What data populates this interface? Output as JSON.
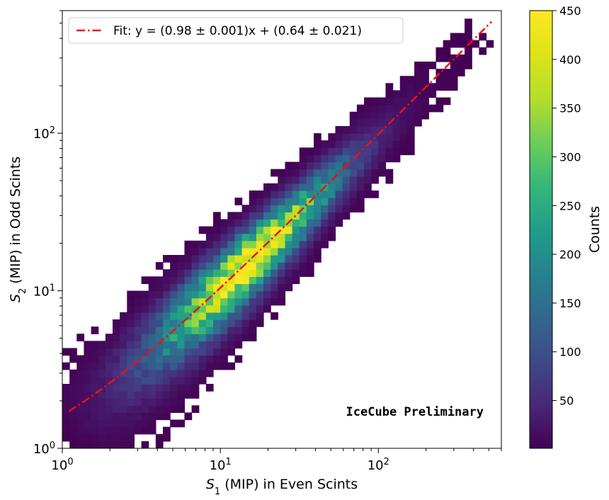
{
  "chart_data": {
    "type": "heatmap",
    "xlabel_pre": "S",
    "xlabel_sub": "1",
    "xlabel_post": " (MIP) in Even Scints",
    "ylabel_pre": "S",
    "ylabel_sub": "2",
    "ylabel_post": " (MIP) in Odd Scints",
    "x_scale": "log",
    "y_scale": "log",
    "xlim": [
      1,
      600
    ],
    "ylim": [
      1,
      600
    ],
    "x_ticks": [
      {
        "value": 1,
        "base": "10",
        "exp": "0"
      },
      {
        "value": 10,
        "base": "10",
        "exp": "1"
      },
      {
        "value": 100,
        "base": "10",
        "exp": "2"
      }
    ],
    "y_ticks": [
      {
        "value": 1,
        "base": "10",
        "exp": "0"
      },
      {
        "value": 10,
        "base": "10",
        "exp": "1"
      },
      {
        "value": 100,
        "base": "10",
        "exp": "2"
      }
    ],
    "colormap": "viridis",
    "colorbar": {
      "label": "Counts",
      "range": [
        1,
        450
      ],
      "ticks": [
        "50",
        "100",
        "150",
        "200",
        "250",
        "300",
        "350",
        "400",
        "450"
      ],
      "tick_values": [
        50,
        100,
        150,
        200,
        250,
        300,
        350,
        400,
        450
      ]
    },
    "fit_line": {
      "label": "Fit: y = (0.98 ± 0.001)x + (0.64 ± 0.021)",
      "slope": 0.98,
      "intercept": 0.64,
      "x_range": [
        1.1,
        520
      ],
      "color": "#ee1111",
      "style": "dash-dot"
    },
    "legend_position": "upper-left",
    "annotation": {
      "text": "IceCube Preliminary",
      "color": "#b22222",
      "position": "bottom-right"
    },
    "heatmap_peak": {
      "x": 15,
      "y": 16,
      "counts": 450
    }
  }
}
